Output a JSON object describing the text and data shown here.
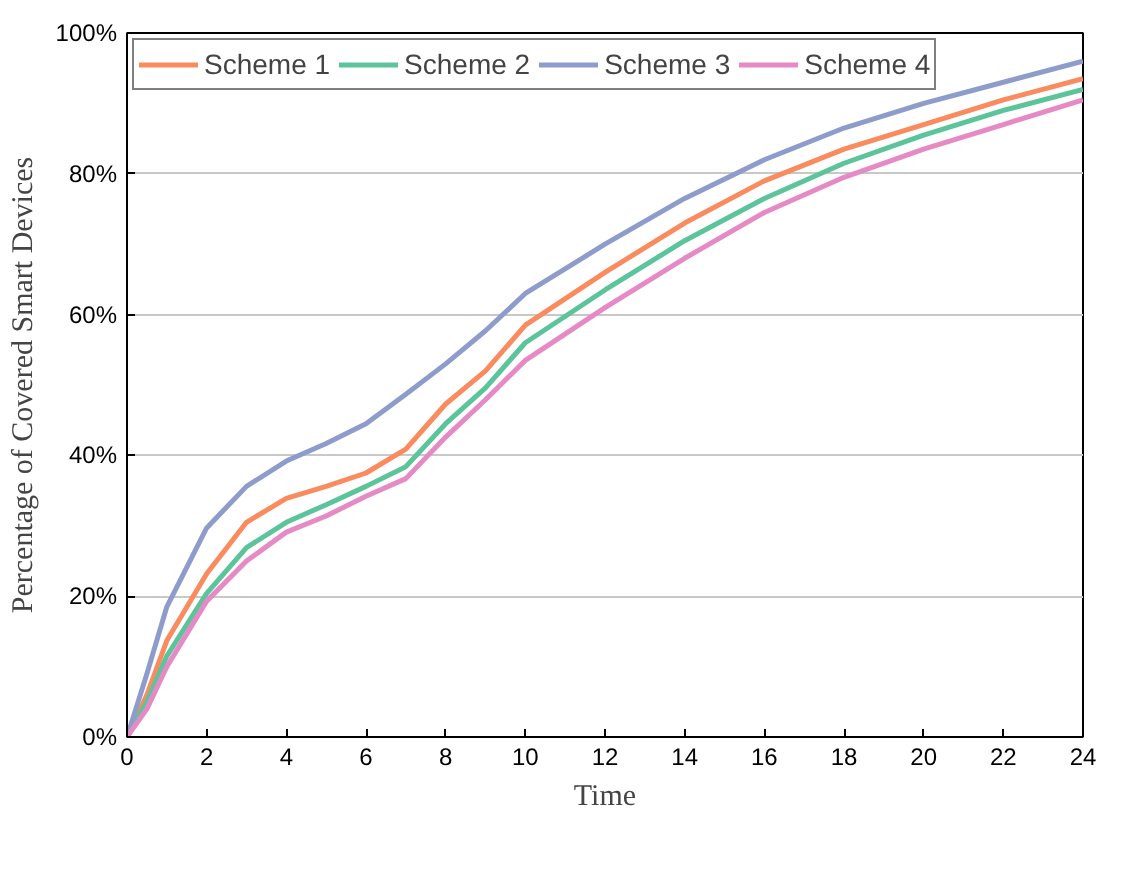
{
  "chart_data": {
    "type": "line",
    "xlabel": "Time",
    "ylabel": "Percentage of Covered Smart Devices",
    "x": [
      0,
      0.5,
      1,
      2,
      3,
      4,
      5,
      6,
      7,
      8,
      9,
      10,
      12,
      14,
      16,
      18,
      20,
      22,
      24
    ],
    "series": [
      {
        "name": "Scheme 1",
        "color": "#f98b5e",
        "values": [
          0,
          6,
          13.7,
          23.2,
          30.5,
          33.9,
          35.6,
          37.5,
          40.9,
          47.3,
          52,
          58.5,
          66,
          73,
          79,
          83.5,
          87,
          90.5,
          93.5
        ]
      },
      {
        "name": "Scheme 2",
        "color": "#5cc49b",
        "values": [
          0,
          5,
          11.5,
          20.4,
          26.9,
          30.5,
          33,
          35.6,
          38.4,
          44.5,
          49.6,
          56,
          63.5,
          70.5,
          76.5,
          81.5,
          85.5,
          89,
          92
        ]
      },
      {
        "name": "Scheme 3",
        "color": "#8e9ccc",
        "values": [
          0,
          9,
          18.5,
          29.7,
          35.6,
          39.2,
          41.7,
          44.5,
          48.7,
          53,
          57.7,
          63,
          70,
          76.5,
          82,
          86.5,
          90,
          93,
          96
        ]
      },
      {
        "name": "Scheme 4",
        "color": "#e68ac6",
        "values": [
          0,
          4,
          10,
          19.3,
          25,
          29.1,
          31.4,
          34.2,
          36.7,
          42.6,
          47.9,
          53.5,
          61,
          68,
          74.5,
          79.5,
          83.5,
          87,
          90.5
        ]
      }
    ],
    "xlim": [
      0,
      24
    ],
    "ylim": [
      0,
      100
    ],
    "xticks": [
      0,
      2,
      4,
      6,
      8,
      10,
      12,
      14,
      16,
      18,
      20,
      22,
      24
    ],
    "yticks": [
      {
        "value": 0,
        "label": "0%"
      },
      {
        "value": 20,
        "label": "20%"
      },
      {
        "value": 40,
        "label": "40%"
      },
      {
        "value": 60,
        "label": "60%"
      },
      {
        "value": 80,
        "label": "80%"
      },
      {
        "value": 100,
        "label": "100%"
      }
    ],
    "grid": "y",
    "legend": "top",
    "line_style": "solid",
    "marker": "none"
  }
}
